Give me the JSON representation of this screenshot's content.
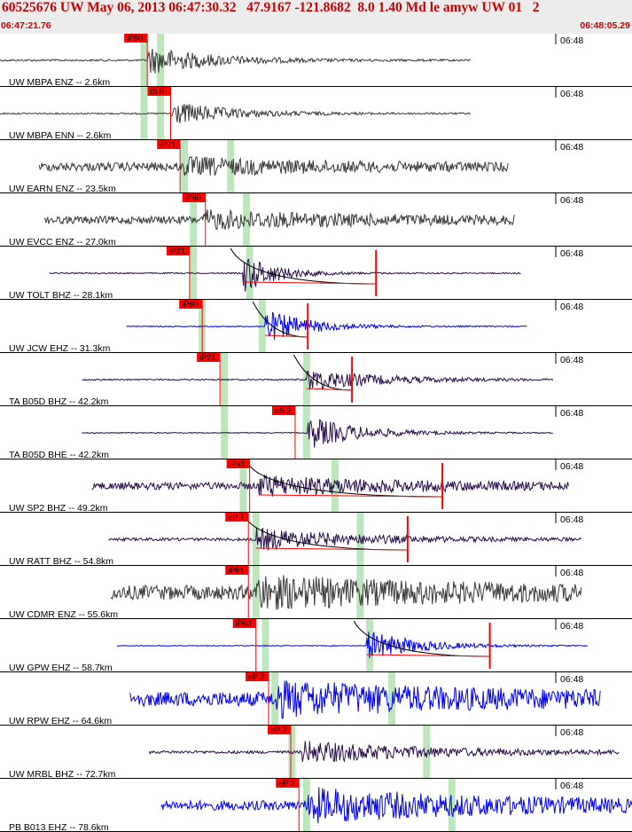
{
  "header": {
    "title": "60525676 UW May 06, 2013 06:47:30.32   47.9167 -121.8682  8.0 1.40 Md le amyw UW 01   2",
    "time_start": "06:47:21.76",
    "time_end": "06:48:05.29"
  },
  "colors": {
    "header_bg": "#ececec",
    "title": "#cc0000",
    "pick": "#ff0000",
    "window": "#bde6bd",
    "trace_gray": "#3a3a3a",
    "trace_purple": "#2a0f4a",
    "trace_blue": "#0000ff"
  },
  "chart_data": {
    "type": "seismogram",
    "x_range_time": [
      "06:47:21.76",
      "06:48:05.29"
    ],
    "time_marker_label": "06:48",
    "traces": [
      {
        "label": "UW MBPA ENZ -- 2.6km",
        "color": "gray",
        "start": 0.0,
        "end": 0.745,
        "amp": 0.6,
        "noise": 0.04,
        "onset": 0.233,
        "dec": 0.1,
        "pick": "iP60",
        "pick_x": 0.233,
        "windows": [
          0.228,
          0.254
        ],
        "moveout": false,
        "spikes": []
      },
      {
        "label": "UW MBPA ENN -- 2.6km",
        "color": "gray",
        "start": 0.0,
        "end": 0.745,
        "amp": 0.5,
        "noise": 0.03,
        "onset": 0.27,
        "dec": 0.1,
        "pick": "iS 0",
        "pick_x": 0.27,
        "windows": [
          0.228,
          0.254
        ],
        "moveout": false,
        "spikes": []
      },
      {
        "label": "UW EARN ENZ -- 23.5km",
        "color": "gray",
        "start": 0.062,
        "end": 0.805,
        "amp": 0.28,
        "noise": 0.18,
        "onset": 0.29,
        "dec": 0.2,
        "pick": "iP21",
        "pick_x": 0.285,
        "windows": [
          0.292,
          0.365
        ],
        "moveout": false,
        "spikes": []
      },
      {
        "label": "UW EVCC ENZ -- 27.0km",
        "color": "gray",
        "start": 0.07,
        "end": 0.815,
        "amp": 0.3,
        "noise": 0.16,
        "onset": 0.32,
        "dec": 0.25,
        "pick": "iP60",
        "pick_x": 0.325,
        "windows": [
          0.306,
          0.39
        ],
        "moveout": false,
        "spikes": []
      },
      {
        "label": "UW TOLT BHZ -- 28.1km",
        "color": "purple",
        "start": 0.078,
        "end": 0.825,
        "amp": 0.85,
        "noise": 0.025,
        "onset": 0.385,
        "dec": 0.05,
        "pick": "iP21",
        "pick_x": 0.3,
        "windows": [
          0.306,
          0.395
        ],
        "moveout": true,
        "spikes": [
          0.595
        ]
      },
      {
        "label": "UW JCW EHZ -- 31.3km",
        "color": "blue",
        "start": 0.2,
        "end": 0.835,
        "amp": 0.7,
        "noise": 0.02,
        "onset": 0.42,
        "dec": 0.07,
        "pick": "iP60",
        "pick_x": 0.32,
        "windows": [
          0.32,
          0.415
        ],
        "moveout": true,
        "spikes": [
          0.487
        ]
      },
      {
        "label": "TA B05D BHZ -- 42.2km",
        "color": "purple",
        "start": 0.13,
        "end": 0.875,
        "amp": 0.45,
        "noise": 0.03,
        "onset": 0.485,
        "dec": 0.12,
        "pick": "iP21",
        "pick_x": 0.348,
        "windows": [
          0.355,
          0.485
        ],
        "moveout": true,
        "spikes": [
          0.557
        ]
      },
      {
        "label": "TA B05D BHE -- 42.2km",
        "color": "purple",
        "start": 0.13,
        "end": 0.875,
        "amp": 0.7,
        "noise": 0.02,
        "onset": 0.487,
        "dec": 0.08,
        "pick": "eS 2",
        "pick_x": 0.467,
        "windows": [
          0.355,
          0.485
        ],
        "moveout": false,
        "spikes": []
      },
      {
        "label": "UW SP2 BHZ -- 49.2km",
        "color": "purple",
        "start": 0.145,
        "end": 0.9,
        "amp": 0.35,
        "noise": 0.15,
        "onset": 0.41,
        "dec": 0.2,
        "pick": "iP41",
        "pick_x": 0.395,
        "windows": [
          0.385,
          0.53
        ],
        "moveout": true,
        "spikes": [
          0.7
        ]
      },
      {
        "label": "UW RATT BHZ -- 54.8km",
        "color": "purple",
        "start": 0.172,
        "end": 0.92,
        "amp": 0.45,
        "noise": 0.06,
        "onset": 0.405,
        "dec": 0.15,
        "pick": "eP 1",
        "pick_x": 0.393,
        "windows": [
          0.405,
          0.57
        ],
        "moveout": true,
        "spikes": [
          0.645
        ]
      },
      {
        "label": "UW CDMR ENZ -- 55.6km",
        "color": "gray",
        "start": 0.175,
        "end": 0.92,
        "amp": 0.5,
        "noise": 0.3,
        "onset": 0.405,
        "dec": 0.3,
        "pick": "iP61",
        "pick_x": 0.393,
        "windows": [
          0.405,
          0.57
        ],
        "moveout": false,
        "spikes": []
      },
      {
        "label": "UW GPW EHZ -- 58.7km",
        "color": "blue",
        "start": 0.185,
        "end": 0.93,
        "amp": 0.65,
        "noise": 0.015,
        "onset": 0.58,
        "dec": 0.08,
        "pick": "iP60",
        "pick_x": 0.405,
        "windows": [
          0.42,
          0.585
        ],
        "moveout": true,
        "spikes": [
          0.775
        ]
      },
      {
        "label": "UW RPW EHZ -- 64.6km",
        "color": "blue",
        "start": 0.205,
        "end": 0.95,
        "amp": 0.55,
        "noise": 0.3,
        "onset": 0.435,
        "dec": 0.3,
        "pick": "eP 2",
        "pick_x": 0.425,
        "windows": [
          0.435,
          0.62
        ],
        "moveout": false,
        "spikes": []
      },
      {
        "label": "UW MRBL BHZ -- 72.7km",
        "color": "purple",
        "start": 0.236,
        "end": 0.98,
        "amp": 0.45,
        "noise": 0.06,
        "onset": 0.478,
        "dec": 0.2,
        "pick": "eP 2",
        "pick_x": 0.46,
        "windows": [
          0.462,
          0.675
        ],
        "moveout": false,
        "spikes": []
      },
      {
        "label": "PB B013 EHZ -- 78.6km",
        "color": "blue",
        "start": 0.255,
        "end": 1.0,
        "amp": 0.6,
        "noise": 0.2,
        "onset": 0.487,
        "dec": 0.3,
        "pick": "eP 2",
        "pick_x": 0.473,
        "windows": [
          0.485,
          0.715
        ],
        "moveout": false,
        "spikes": []
      }
    ]
  }
}
